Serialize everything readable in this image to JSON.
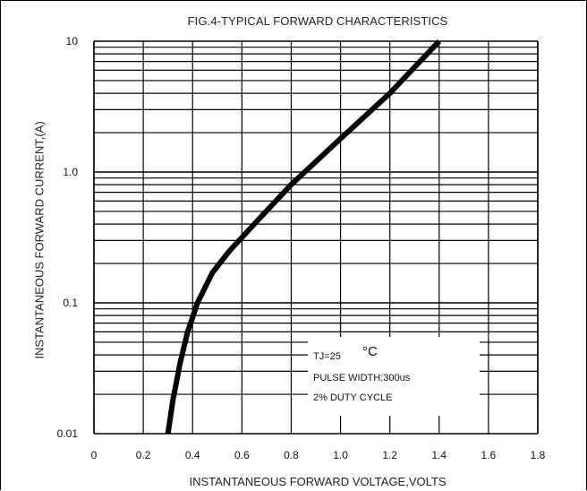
{
  "chart_data": {
    "type": "line",
    "title": "FIG.4-TYPICAL FORWARD CHARACTERISTICS",
    "xlabel": "INSTANTANEOUS FORWARD VOLTAGE,VOLTS",
    "ylabel": "INSTANTANEOUS FORWARD CURRENT,(A)",
    "x_scale": "linear",
    "y_scale": "log",
    "xlim": [
      0,
      1.8
    ],
    "ylim": [
      0.01,
      10
    ],
    "x_ticks": [
      "0",
      "0.2",
      "0.4",
      "0.6",
      "0.8",
      "1.0",
      "1.2",
      "1.4",
      "1.6",
      "1.8"
    ],
    "y_ticks": [
      "0.01",
      "0.1",
      "1.0",
      "10"
    ],
    "grid": true,
    "series": [
      {
        "x": [
          0.3,
          0.32,
          0.35,
          0.38,
          0.42,
          0.48,
          0.55,
          0.65,
          0.8,
          1.0,
          1.2,
          1.4
        ],
        "y": [
          0.01,
          0.018,
          0.035,
          0.06,
          0.1,
          0.17,
          0.25,
          0.4,
          0.8,
          1.8,
          4.0,
          10.0
        ],
        "color": "#000000"
      }
    ],
    "annotations": {
      "tj": "TJ=25",
      "deg": "°C",
      "pulse": "PULSE WIDTH:300us",
      "duty": "2% DUTY CYCLE"
    }
  }
}
